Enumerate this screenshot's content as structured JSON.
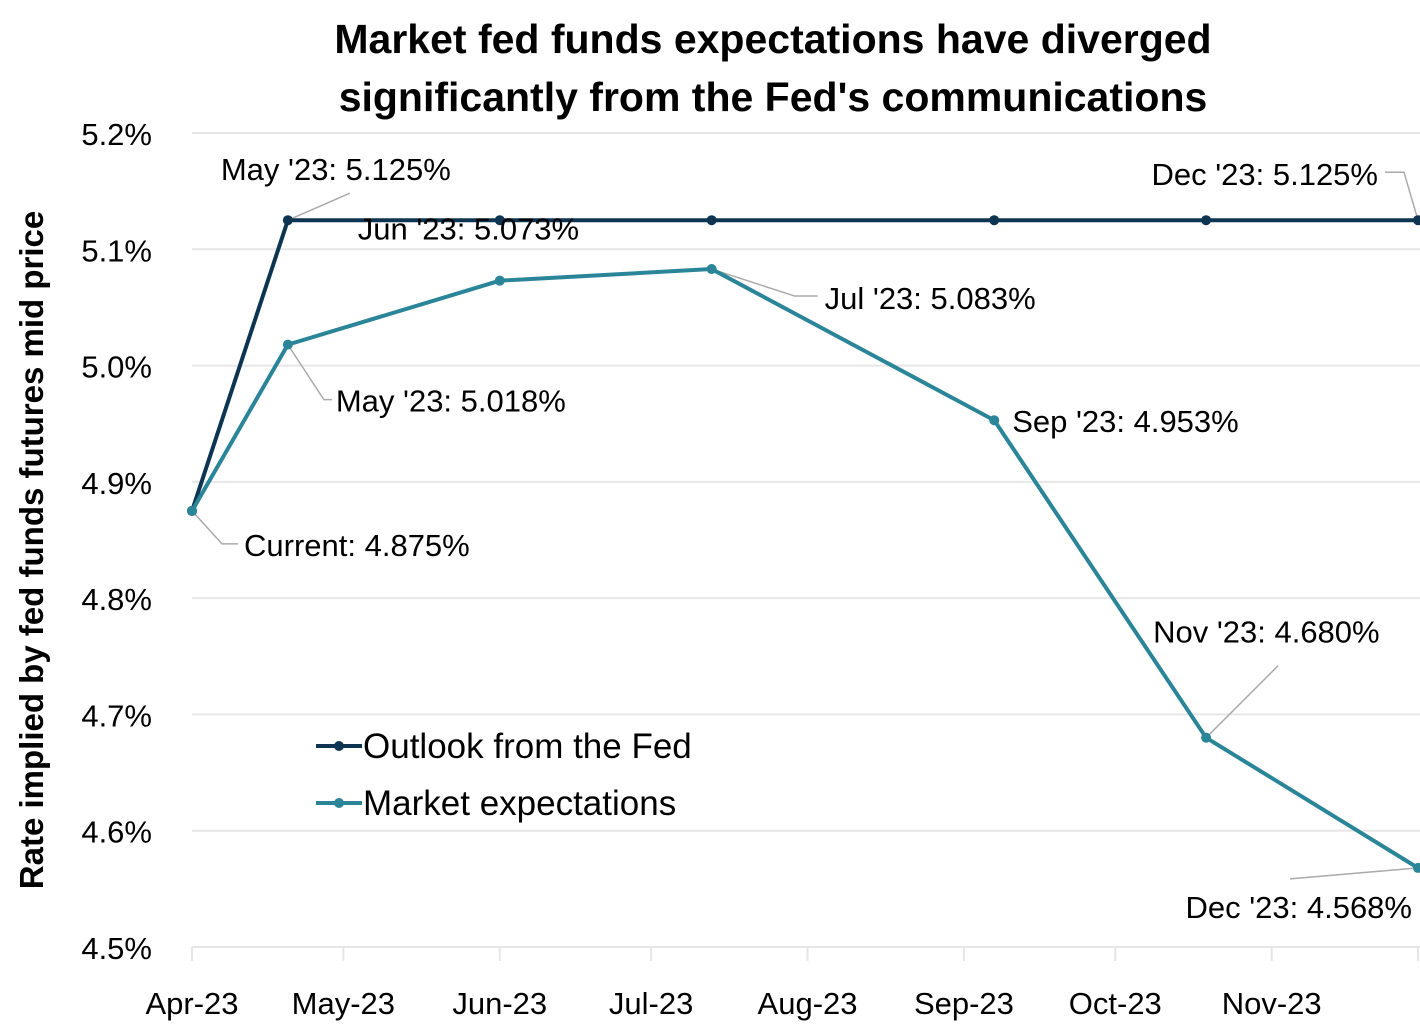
{
  "chart_data": {
    "type": "line",
    "title": "Market fed funds expectations have diverged significantly from the Fed's communications",
    "title_lines": [
      "Market fed funds expectations have diverged",
      "significantly from the Fed's communications"
    ],
    "xlabel": "",
    "ylabel": "Rate implied by fed funds futures mid price",
    "ylim": [
      4.5,
      5.2
    ],
    "yticks": [
      4.5,
      4.6,
      4.7,
      4.8,
      4.9,
      5.0,
      5.1,
      5.2
    ],
    "ytick_labels": [
      "4.5%",
      "4.6%",
      "4.7%",
      "4.8%",
      "4.9%",
      "5.0%",
      "5.1%",
      "5.2%"
    ],
    "xlim": [
      "2023-04-01",
      "2023-11-30"
    ],
    "xticks": [
      "2023-04-01",
      "2023-05-01",
      "2023-06-01",
      "2023-07-01",
      "2023-08-01",
      "2023-09-01",
      "2023-10-01",
      "2023-11-01"
    ],
    "xtick_labels": [
      "Apr-23",
      "May-23",
      "Jun-23",
      "Jul-23",
      "Aug-23",
      "Sep-23",
      "Oct-23",
      "Nov-23"
    ],
    "grid": "horizontal",
    "legend_position": "center-left",
    "x": [
      "2023-04-01",
      "2023-04-20",
      "2023-06-01",
      "2023-07-13",
      "2023-09-07",
      "2023-10-19",
      "2023-11-30"
    ],
    "series": [
      {
        "name": "Outlook from the Fed",
        "color": "#0d3552",
        "values": [
          4.875,
          5.125,
          5.125,
          5.125,
          5.125,
          5.125,
          5.125
        ]
      },
      {
        "name": "Market expectations",
        "color": "#2a8599",
        "values": [
          4.875,
          5.018,
          5.073,
          5.083,
          4.953,
          4.68,
          4.568
        ]
      }
    ],
    "annotations": [
      {
        "series": 0,
        "point": 1,
        "text": "May '23: 5.125%"
      },
      {
        "series": 0,
        "point": 6,
        "text": "Dec '23: 5.125%"
      },
      {
        "series": 1,
        "point": 0,
        "text": "Current: 4.875%"
      },
      {
        "series": 1,
        "point": 1,
        "text": "May '23: 5.018%"
      },
      {
        "series": 1,
        "point": 2,
        "text": "Jun '23: 5.073%"
      },
      {
        "series": 1,
        "point": 3,
        "text": "Jul '23: 5.083%"
      },
      {
        "series": 1,
        "point": 4,
        "text": "Sep '23: 4.953%"
      },
      {
        "series": 1,
        "point": 5,
        "text": "Nov '23: 4.680%"
      },
      {
        "series": 1,
        "point": 6,
        "text": "Dec '23: 4.568%"
      }
    ],
    "colors": {
      "gridline": "#e6e6e6",
      "leader_line": "#aaaaaa",
      "text": "#000000"
    }
  }
}
